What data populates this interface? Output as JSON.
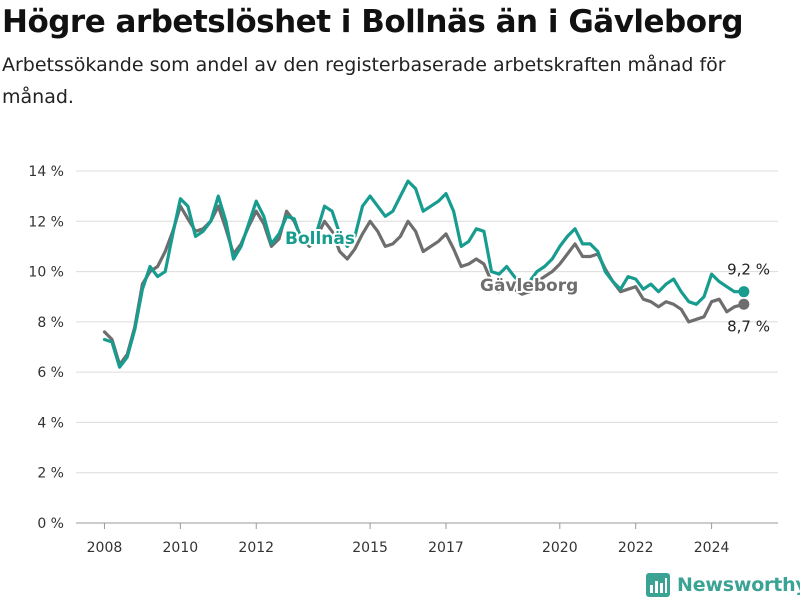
{
  "title": "Högre arbetslöshet i Bollnäs än i Gävleborg",
  "subtitle": "Arbetssökande som andel av den registerbaserade arbetskraften månad för månad.",
  "brand": {
    "name": "Newsworthy",
    "icon": "bar-chart-logo-icon",
    "color": "#3aa394"
  },
  "colors": {
    "Bollnäs": "#179c8f",
    "Gävleborg": "#6e6e6e"
  },
  "chart_data": {
    "type": "line",
    "xlabel": "",
    "ylabel": "",
    "x_ticks": [
      "2008",
      "2010",
      "2012",
      "2015",
      "2017",
      "2020",
      "2022",
      "2024"
    ],
    "y_ticks": [
      "0 %",
      "2 %",
      "4 %",
      "6 %",
      "8 %",
      "10 %",
      "12 %",
      "14 %"
    ],
    "xlim": [
      2007.25,
      2025.75
    ],
    "ylim": [
      0,
      14
    ],
    "grid": true,
    "legend": "inline labels",
    "series": [
      {
        "name": "Bollnäs",
        "end_label": "9,2 %",
        "points": [
          [
            2008.0,
            7.3
          ],
          [
            2008.2,
            7.2
          ],
          [
            2008.4,
            6.2
          ],
          [
            2008.6,
            6.6
          ],
          [
            2008.8,
            7.7
          ],
          [
            2009.0,
            9.3
          ],
          [
            2009.2,
            10.2
          ],
          [
            2009.4,
            9.8
          ],
          [
            2009.6,
            10.0
          ],
          [
            2009.8,
            11.5
          ],
          [
            2010.0,
            12.9
          ],
          [
            2010.2,
            12.6
          ],
          [
            2010.4,
            11.4
          ],
          [
            2010.6,
            11.6
          ],
          [
            2010.8,
            12.0
          ],
          [
            2011.0,
            13.0
          ],
          [
            2011.2,
            12.0
          ],
          [
            2011.4,
            10.5
          ],
          [
            2011.6,
            11.0
          ],
          [
            2011.8,
            11.9
          ],
          [
            2012.0,
            12.8
          ],
          [
            2012.2,
            12.2
          ],
          [
            2012.4,
            11.1
          ],
          [
            2012.6,
            11.5
          ],
          [
            2012.8,
            12.2
          ],
          [
            2013.0,
            12.1
          ],
          [
            2013.2,
            11.2
          ],
          [
            2013.4,
            11.1
          ],
          [
            2013.6,
            11.6
          ],
          [
            2013.8,
            12.6
          ],
          [
            2014.0,
            12.4
          ],
          [
            2014.2,
            11.5
          ],
          [
            2014.4,
            11.0
          ],
          [
            2014.6,
            11.4
          ],
          [
            2014.8,
            12.6
          ],
          [
            2015.0,
            13.0
          ],
          [
            2015.2,
            12.6
          ],
          [
            2015.4,
            12.2
          ],
          [
            2015.6,
            12.4
          ],
          [
            2015.8,
            13.0
          ],
          [
            2016.0,
            13.6
          ],
          [
            2016.2,
            13.3
          ],
          [
            2016.4,
            12.4
          ],
          [
            2016.6,
            12.6
          ],
          [
            2016.8,
            12.8
          ],
          [
            2017.0,
            13.1
          ],
          [
            2017.2,
            12.4
          ],
          [
            2017.4,
            11.0
          ],
          [
            2017.6,
            11.2
          ],
          [
            2017.8,
            11.7
          ],
          [
            2018.0,
            11.6
          ],
          [
            2018.2,
            10.0
          ],
          [
            2018.4,
            9.9
          ],
          [
            2018.6,
            10.2
          ],
          [
            2018.8,
            9.8
          ],
          [
            2019.0,
            9.5
          ],
          [
            2019.2,
            9.6
          ],
          [
            2019.4,
            10.0
          ],
          [
            2019.6,
            10.2
          ],
          [
            2019.8,
            10.5
          ],
          [
            2020.0,
            11.0
          ],
          [
            2020.2,
            11.4
          ],
          [
            2020.4,
            11.7
          ],
          [
            2020.6,
            11.1
          ],
          [
            2020.8,
            11.1
          ],
          [
            2021.0,
            10.8
          ],
          [
            2021.2,
            10.0
          ],
          [
            2021.4,
            9.6
          ],
          [
            2021.6,
            9.3
          ],
          [
            2021.8,
            9.8
          ],
          [
            2022.0,
            9.7
          ],
          [
            2022.2,
            9.3
          ],
          [
            2022.4,
            9.5
          ],
          [
            2022.6,
            9.2
          ],
          [
            2022.8,
            9.5
          ],
          [
            2023.0,
            9.7
          ],
          [
            2023.2,
            9.2
          ],
          [
            2023.4,
            8.8
          ],
          [
            2023.6,
            8.7
          ],
          [
            2023.8,
            9.0
          ],
          [
            2024.0,
            9.9
          ],
          [
            2024.2,
            9.6
          ],
          [
            2024.4,
            9.4
          ],
          [
            2024.6,
            9.2
          ],
          [
            2024.85,
            9.2
          ]
        ]
      },
      {
        "name": "Gävleborg",
        "end_label": "8,7 %",
        "points": [
          [
            2008.0,
            7.6
          ],
          [
            2008.2,
            7.3
          ],
          [
            2008.4,
            6.3
          ],
          [
            2008.6,
            6.7
          ],
          [
            2008.8,
            7.8
          ],
          [
            2009.0,
            9.5
          ],
          [
            2009.2,
            10.0
          ],
          [
            2009.4,
            10.2
          ],
          [
            2009.6,
            10.8
          ],
          [
            2009.8,
            11.6
          ],
          [
            2010.0,
            12.6
          ],
          [
            2010.2,
            12.1
          ],
          [
            2010.4,
            11.6
          ],
          [
            2010.6,
            11.7
          ],
          [
            2010.8,
            12.0
          ],
          [
            2011.0,
            12.6
          ],
          [
            2011.2,
            11.7
          ],
          [
            2011.4,
            10.7
          ],
          [
            2011.6,
            11.1
          ],
          [
            2011.8,
            11.8
          ],
          [
            2012.0,
            12.4
          ],
          [
            2012.2,
            11.9
          ],
          [
            2012.4,
            11.0
          ],
          [
            2012.6,
            11.3
          ],
          [
            2012.8,
            12.4
          ],
          [
            2013.0,
            12.0
          ],
          [
            2013.2,
            11.3
          ],
          [
            2013.4,
            11.0
          ],
          [
            2013.6,
            11.4
          ],
          [
            2013.8,
            12.0
          ],
          [
            2014.0,
            11.6
          ],
          [
            2014.2,
            10.8
          ],
          [
            2014.4,
            10.5
          ],
          [
            2014.6,
            10.9
          ],
          [
            2014.8,
            11.5
          ],
          [
            2015.0,
            12.0
          ],
          [
            2015.2,
            11.6
          ],
          [
            2015.4,
            11.0
          ],
          [
            2015.6,
            11.1
          ],
          [
            2015.8,
            11.4
          ],
          [
            2016.0,
            12.0
          ],
          [
            2016.2,
            11.6
          ],
          [
            2016.4,
            10.8
          ],
          [
            2016.6,
            11.0
          ],
          [
            2016.8,
            11.2
          ],
          [
            2017.0,
            11.5
          ],
          [
            2017.2,
            10.9
          ],
          [
            2017.4,
            10.2
          ],
          [
            2017.6,
            10.3
          ],
          [
            2017.8,
            10.5
          ],
          [
            2018.0,
            10.3
          ],
          [
            2018.2,
            9.6
          ],
          [
            2018.4,
            9.2
          ],
          [
            2018.6,
            9.4
          ],
          [
            2018.8,
            9.3
          ],
          [
            2019.0,
            9.1
          ],
          [
            2019.2,
            9.2
          ],
          [
            2019.4,
            9.6
          ],
          [
            2019.6,
            9.8
          ],
          [
            2019.8,
            10.0
          ],
          [
            2020.0,
            10.3
          ],
          [
            2020.2,
            10.7
          ],
          [
            2020.4,
            11.1
          ],
          [
            2020.6,
            10.6
          ],
          [
            2020.8,
            10.6
          ],
          [
            2021.0,
            10.7
          ],
          [
            2021.2,
            10.1
          ],
          [
            2021.4,
            9.6
          ],
          [
            2021.6,
            9.2
          ],
          [
            2021.8,
            9.3
          ],
          [
            2022.0,
            9.4
          ],
          [
            2022.2,
            8.9
          ],
          [
            2022.4,
            8.8
          ],
          [
            2022.6,
            8.6
          ],
          [
            2022.8,
            8.8
          ],
          [
            2023.0,
            8.7
          ],
          [
            2023.2,
            8.5
          ],
          [
            2023.4,
            8.0
          ],
          [
            2023.6,
            8.1
          ],
          [
            2023.8,
            8.2
          ],
          [
            2024.0,
            8.8
          ],
          [
            2024.2,
            8.9
          ],
          [
            2024.4,
            8.4
          ],
          [
            2024.6,
            8.6
          ],
          [
            2024.85,
            8.7
          ]
        ]
      }
    ]
  }
}
